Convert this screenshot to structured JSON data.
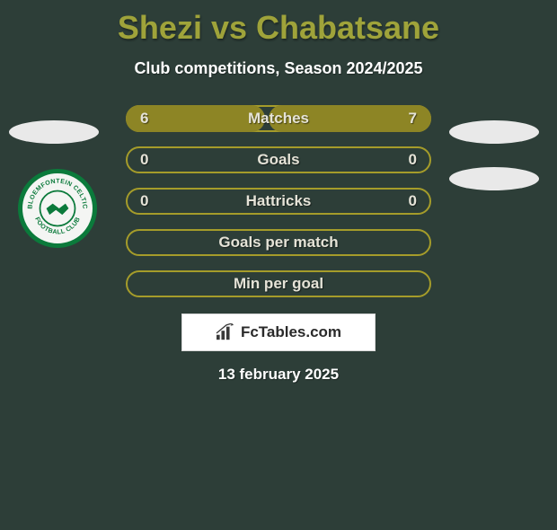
{
  "title_color": "#9fa33a",
  "title": "Shezi vs Chabatsane",
  "subtitle": "Club competitions, Season 2024/2025",
  "accent_border": "#a59c2a",
  "fill_color": "#8d8525",
  "oval_color": "#e9e9e9",
  "background_color": "#2d3e38",
  "badge_ring_color": "#0b7a3b",
  "badge_top_text": "BLOEMFONTEIN CELTIC",
  "badge_bottom_text": "FOOTBALL CLUB",
  "rows": [
    {
      "label": "Matches",
      "left": "6",
      "right": "7",
      "left_fill_pct": 46,
      "right_fill_pct": 54
    },
    {
      "label": "Goals",
      "left": "0",
      "right": "0",
      "left_fill_pct": 0,
      "right_fill_pct": 0
    },
    {
      "label": "Hattricks",
      "left": "0",
      "right": "0",
      "left_fill_pct": 0,
      "right_fill_pct": 0
    },
    {
      "label": "Goals per match",
      "left": "",
      "right": "",
      "left_fill_pct": 0,
      "right_fill_pct": 0
    },
    {
      "label": "Min per goal",
      "left": "",
      "right": "",
      "left_fill_pct": 0,
      "right_fill_pct": 0
    }
  ],
  "logo_text": "FcTables.com",
  "date": "13 february 2025"
}
